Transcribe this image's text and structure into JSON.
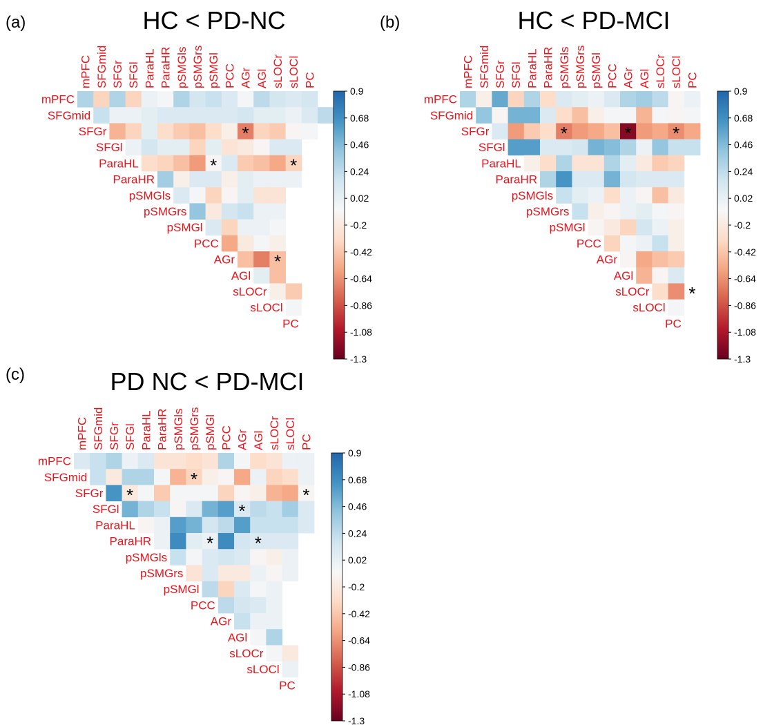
{
  "figure": {
    "colorscale": [
      "#67001f",
      "#b2182b",
      "#d6604d",
      "#f4a582",
      "#fddbc7",
      "#f7f7f7",
      "#d1e5f0",
      "#92c5de",
      "#4393c3",
      "#2166ac"
    ],
    "label_color": "#e8141b",
    "star_glyph": "*"
  },
  "chart_data": [
    {
      "type": "heatmap",
      "panel_label": "(a)",
      "title": "HC < PD-NC",
      "regions": [
        "mPFC",
        "SFGmid",
        "SFGr",
        "SFGl",
        "ParaHL",
        "ParaHR",
        "pSMGls",
        "pSMGrs",
        "pSMGl",
        "PCC",
        "AGr",
        "AGl",
        "sLOCr",
        "sLOCl",
        "PC"
      ],
      "colorbar_ticks": [
        "0.9",
        "0.68",
        "0.46",
        "0.24",
        "0.02",
        "-0.2",
        "-0.42",
        "-0.64",
        "-0.86",
        "-1.08",
        "-1.3"
      ],
      "range": [
        -1.3,
        0.9
      ],
      "values": [
        [
          0.3,
          -0.35,
          0.3,
          -0.35,
          0,
          -0.05,
          0.3,
          0.15,
          0.2,
          0.1,
          -0.05,
          0.25,
          0.15,
          0.1,
          0.15
        ],
        [
          0.2,
          0,
          0,
          0.05,
          0.1,
          0.1,
          0.1,
          0.1,
          0.1,
          0.15,
          0.05,
          0.05,
          0,
          0.1,
          0.25
        ],
        [
          -0.5,
          -0.35,
          0.05,
          -0.3,
          -0.4,
          -0.45,
          -0.3,
          -0.15,
          -0.7,
          -0.35,
          -0.4,
          -0.1,
          -0.05
        ],
        [
          0,
          0.15,
          0.05,
          0.05,
          -0.35,
          0.05,
          -0.25,
          -0.2,
          -0.1,
          0.1,
          0.1
        ],
        [
          -0.3,
          -0.35,
          -0.45,
          -0.6,
          -0.1,
          0.1,
          -0.4,
          -0.45,
          -0.55,
          -0.35
        ],
        [
          0.35,
          -0.15,
          0.1,
          0.1,
          -0.15,
          0.05,
          0,
          0,
          0
        ],
        [
          0.1,
          -0.05,
          -0.35,
          -0.1,
          0.05,
          -0.25,
          -0.25
        ],
        [
          0.4,
          -0.2,
          0.15,
          0.2,
          0,
          0
        ],
        [
          0.1,
          -0.35,
          0,
          0,
          -0.05
        ],
        [
          -0.55,
          -0.2,
          -0.05,
          -0.15
        ],
        [
          -0.45,
          -0.7,
          -0.45
        ],
        [
          0.05,
          -0.45
        ],
        [
          -0.15,
          -0.4
        ],
        [
          -0.05
        ],
        []
      ],
      "significant": [
        [
          2,
          10
        ],
        [
          4,
          8
        ],
        [
          4,
          13
        ],
        [
          10,
          12
        ]
      ]
    },
    {
      "type": "heatmap",
      "panel_label": "(b)",
      "title": "HC < PD-MCI",
      "regions": [
        "mPFC",
        "SFGmid",
        "SFGr",
        "SFGl",
        "ParaHL",
        "ParaHR",
        "pSMGls",
        "pSMGrs",
        "pSMGl",
        "PCC",
        "AGr",
        "AGl",
        "sLOCr",
        "sLOCl",
        "PC"
      ],
      "colorbar_ticks": [
        "0.9",
        "0.68",
        "0.46",
        "0.24",
        "0.02",
        "-0.2",
        "-0.42",
        "-0.64",
        "-0.86",
        "-1.08",
        "-1.3"
      ],
      "range": [
        -1.3,
        0.9
      ],
      "values": [
        [
          0.3,
          -0.15,
          0.55,
          -0.35,
          0.3,
          -0.3,
          0.1,
          0.05,
          0,
          0.1,
          0.3,
          0.35,
          0.25,
          -0.1,
          0
        ],
        [
          0.4,
          -0.1,
          0.5,
          0.5,
          0.1,
          -0.3,
          -0.45,
          -0.15,
          -0.05,
          -0.05,
          -0.5,
          -0.05,
          -0.1,
          -0.05
        ],
        [
          0.1,
          -0.6,
          -0.4,
          -0.3,
          -0.7,
          -0.6,
          -0.55,
          -0.45,
          -1.2,
          -0.6,
          -0.55,
          -0.65,
          -0.55
        ],
        [
          0.6,
          0.6,
          0.1,
          0.1,
          0.15,
          0.5,
          0.45,
          0.3,
          0,
          0.4,
          0.2,
          0.2
        ],
        [
          -0.15,
          -0.3,
          0.3,
          -0.25,
          -0.25,
          0.3,
          0.05,
          -0.2,
          -0.4,
          -0.35
        ],
        [
          0.3,
          0.65,
          0.1,
          0.1,
          0.5,
          0.15,
          0.1,
          0.1,
          0.1
        ],
        [
          0.2,
          0.05,
          0,
          -0.3,
          0,
          -0.1,
          -0.45,
          -0.2
        ],
        [
          0.2,
          -0.15,
          -0.1,
          0,
          0.05,
          -0.05,
          -0.1
        ],
        [
          -0.1,
          -0.2,
          -0.35,
          0.15,
          0,
          -0.15
        ],
        [
          -0.35,
          -0.05,
          0,
          0.2,
          -0.15
        ],
        [
          -0.1,
          -0.55,
          -0.45,
          -0.4
        ],
        [
          -0.5,
          -0.1,
          0.1
        ],
        [
          -0.3,
          -0.65
        ],
        [
          -0.05
        ],
        []
      ],
      "significant": [
        [
          2,
          6
        ],
        [
          2,
          10
        ],
        [
          2,
          13
        ],
        [
          12,
          14
        ]
      ]
    },
    {
      "type": "heatmap",
      "panel_label": "(c)",
      "title": "PD NC < PD-MCI",
      "regions": [
        "mPFC",
        "SFGmid",
        "SFGr",
        "SFGl",
        "ParaHL",
        "ParaHR",
        "pSMGls",
        "pSMGrs",
        "pSMGl",
        "PCC",
        "AGr",
        "AGl",
        "sLOCr",
        "sLOCl",
        "PC"
      ],
      "colorbar_ticks": [
        "0.9",
        "0.68",
        "0.46",
        "0.24",
        "0.02",
        "-0.2",
        "-0.42",
        "-0.64",
        "-0.86",
        "-1.08",
        "-1.3"
      ],
      "range": [
        -1.3,
        0.9
      ],
      "values": [
        [
          0.1,
          0.2,
          0.3,
          0,
          0.1,
          -0.25,
          -0.25,
          -0.3,
          -0.25,
          0.3,
          -0.05,
          -0.3,
          -0.25,
          0,
          0
        ],
        [
          0.2,
          -0.2,
          0.3,
          0.3,
          -0.05,
          -0.5,
          -0.35,
          -0.15,
          -0.1,
          -0.55,
          0,
          -0.35,
          -0.3,
          0
        ],
        [
          0.65,
          -0.2,
          -0.05,
          -0.4,
          -0.05,
          -0.05,
          -0.05,
          -0.35,
          -0.1,
          -0.15,
          -0.5,
          -0.55,
          -0.1
        ],
        [
          0.5,
          0.3,
          0.2,
          -0.1,
          0.1,
          0.5,
          0.6,
          0.1,
          0.25,
          0.2,
          0.35,
          0.1
        ],
        [
          -0.1,
          0,
          0.6,
          0.5,
          0.15,
          0.25,
          0.6,
          0.2,
          0.2,
          0.2,
          0.1
        ],
        [
          0,
          0.7,
          0.05,
          0,
          0.7,
          0.15,
          0.1,
          0.1,
          0.1
        ],
        [
          0.2,
          -0.05,
          0.1,
          0.15,
          0.1,
          -0.1,
          -0.15,
          0
        ],
        [
          -0.25,
          0.1,
          -0.2,
          -0.2,
          0,
          -0.1,
          0
        ],
        [
          0.25,
          -0.35,
          0.1,
          -0.05,
          0
        ],
        [
          0.25,
          0.15,
          0.1,
          0
        ],
        [
          0.2,
          0,
          0
        ],
        [
          -0.05,
          0.3
        ],
        [
          -0.05,
          -0.2
        ],
        [
          0
        ],
        []
      ],
      "significant": [
        [
          1,
          7
        ],
        [
          2,
          3
        ],
        [
          2,
          14
        ],
        [
          3,
          10
        ],
        [
          5,
          8
        ],
        [
          5,
          11
        ]
      ]
    }
  ]
}
